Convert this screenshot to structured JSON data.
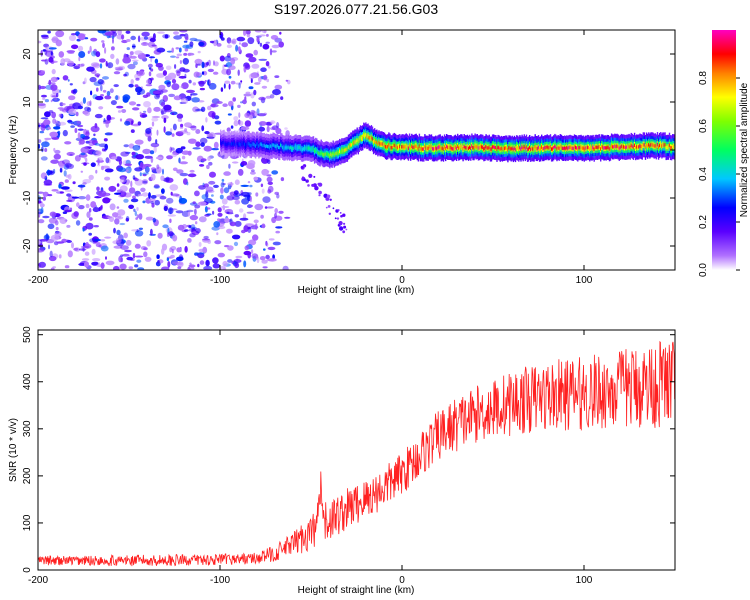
{
  "figure": {
    "title": "S197.2026.077.21.56.G03"
  },
  "chart_data": [
    {
      "type": "heatmap",
      "name": "spectrogram",
      "xlabel": "Height of straight line (km)",
      "ylabel": "Frequency (Hz)",
      "xlim": [
        -200,
        150
      ],
      "ylim": [
        -25,
        25
      ],
      "xticks": [
        -200,
        -100,
        0,
        100
      ],
      "xtick_labels": [
        "-200",
        "-100",
        "0",
        "100"
      ],
      "yticks": [
        -20,
        -10,
        0,
        10,
        20
      ],
      "ytick_labels": [
        "-20",
        "-10",
        "0",
        "10",
        "20"
      ],
      "noise_region_x": [
        -200,
        -75
      ],
      "ridge": {
        "description": "spectral peak frequency vs height",
        "x": [
          -100,
          -90,
          -80,
          -70,
          -60,
          -50,
          -45,
          -40,
          -35,
          -30,
          -25,
          -20,
          -15,
          -10,
          -5,
          0,
          20,
          40,
          60,
          80,
          100,
          120,
          140,
          150
        ],
        "freq_hz": [
          1.5,
          1.2,
          1.0,
          0.8,
          0.5,
          0.2,
          -0.6,
          -1.0,
          -0.5,
          0.5,
          1.8,
          3.2,
          1.6,
          0.9,
          0.7,
          0.6,
          0.4,
          0.6,
          0.3,
          0.5,
          0.4,
          0.6,
          0.9,
          0.7
        ],
        "amplitude": [
          0.25,
          0.3,
          0.35,
          0.4,
          0.45,
          0.5,
          0.6,
          0.65,
          0.7,
          0.75,
          0.8,
          0.85,
          0.85,
          0.9,
          0.9,
          0.9,
          0.95,
          0.95,
          0.95,
          0.95,
          0.95,
          0.95,
          0.9,
          0.9
        ]
      },
      "colorbar": {
        "label": "Normalized spectral amplitude",
        "range": [
          0,
          1
        ],
        "ticks": [
          0.0,
          0.2,
          0.4,
          0.6,
          0.8
        ],
        "tick_labels": [
          "0.0",
          "0.2",
          "0.4",
          "0.6",
          "0.8"
        ],
        "colors": [
          "#ffffff",
          "#9b30ff",
          "#0000ff",
          "#00ffff",
          "#00ff00",
          "#ffff00",
          "#ff0000",
          "#ff00ff"
        ]
      }
    },
    {
      "type": "line",
      "name": "snr",
      "color": "#ff2020",
      "xlabel": "Height of straight line (km)",
      "ylabel": "SNR (10 * v/v)",
      "xlim": [
        -200,
        150
      ],
      "ylim": [
        0,
        510
      ],
      "xticks": [
        -200,
        -100,
        0,
        100
      ],
      "xtick_labels": [
        "-200",
        "-100",
        "0",
        "100"
      ],
      "yticks": [
        0,
        100,
        200,
        300,
        400,
        500
      ],
      "ytick_labels": [
        "0",
        "100",
        "200",
        "300",
        "400",
        "500"
      ],
      "trend": {
        "x": [
          -200,
          -150,
          -100,
          -80,
          -70,
          -60,
          -50,
          -40,
          -30,
          -20,
          -10,
          0,
          10,
          20,
          30,
          40,
          60,
          80,
          100,
          120,
          140,
          150
        ],
        "mean": [
          20,
          20,
          22,
          25,
          35,
          55,
          80,
          105,
          130,
          150,
          175,
          205,
          245,
          285,
          310,
          330,
          355,
          370,
          375,
          385,
          395,
          400
        ],
        "noise": [
          10,
          12,
          12,
          12,
          18,
          25,
          40,
          45,
          45,
          45,
          45,
          45,
          50,
          55,
          60,
          60,
          70,
          75,
          80,
          85,
          95,
          100
        ]
      }
    }
  ]
}
